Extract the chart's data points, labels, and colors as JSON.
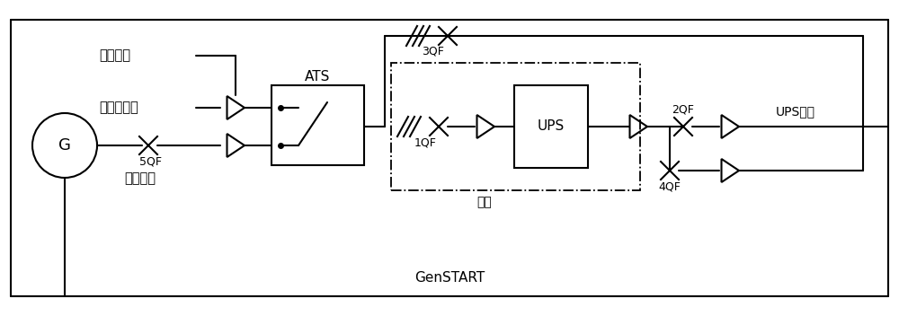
{
  "bg_color": "#ffffff",
  "lc": "#000000",
  "lw": 1.5,
  "fig_w": 10.0,
  "fig_h": 3.52,
  "texts": {
    "shi_dian": "市电进线",
    "chai_you": "柴油发电机",
    "you_ji": "油机进线",
    "G": "G",
    "5QF": "5QF",
    "ATS": "ATS",
    "3QF": "3QF",
    "1QF": "1QF",
    "tong_xun": "通讯",
    "UPS": "UPS",
    "2QF": "2QF",
    "4QF": "4QF",
    "UPS_out": "UPS输出",
    "GenSTART": "GenSTART"
  }
}
